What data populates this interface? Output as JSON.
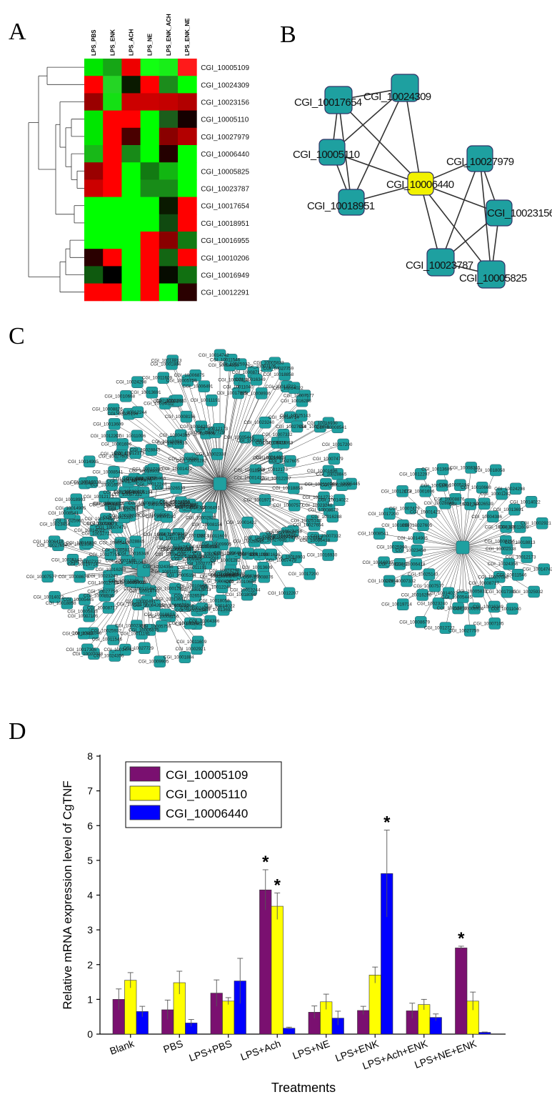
{
  "panels": {
    "a": "A",
    "b": "B",
    "c": "C",
    "d": "D"
  },
  "heatmap": {
    "columns": [
      "LPS_PBS",
      "LPS_ENK",
      "LPS_ACH",
      "LPS_NE",
      "LPS_ENK_ACH",
      "LPS_ENK_NE"
    ],
    "rows": [
      "CGI_10005109",
      "CGI_10024309",
      "CGI_10023156",
      "CGI_10005110",
      "CGI_10027979",
      "CGI_10006440",
      "CGI_10005825",
      "CGI_10023787",
      "CGI_10017654",
      "CGI_10018951",
      "CGI_10016955",
      "CGI_10010206",
      "CGI_10016949",
      "CGI_10012291"
    ],
    "colors": [
      [
        "#00e600",
        "#16a616",
        "#ee0000",
        "#12ff12",
        "#18ee18",
        "#ff1a1a"
      ],
      [
        "#ff0000",
        "#25d525",
        "#0a1a00",
        "#ff0000",
        "#1c8c1c",
        "#00ff00"
      ],
      [
        "#9a0000",
        "#14e014",
        "#cc0000",
        "#cc0000",
        "#c40000",
        "#b20000"
      ],
      [
        "#00e600",
        "#ff0000",
        "#ff0000",
        "#00ff00",
        "#1b5e1b",
        "#150000"
      ],
      [
        "#00e600",
        "#ff0000",
        "#4a0000",
        "#00ff00",
        "#8a0000",
        "#b30000"
      ],
      [
        "#18b818",
        "#ff0000",
        "#188a18",
        "#00ff00",
        "#240000",
        "#00ff00"
      ],
      [
        "#9a0000",
        "#ff0000",
        "#00ff00",
        "#127a12",
        "#12b612",
        "#00ff00"
      ],
      [
        "#cc0000",
        "#ff0000",
        "#00ff00",
        "#188c18",
        "#188c18",
        "#00ff00"
      ],
      [
        "#00ff00",
        "#00ff00",
        "#00ff00",
        "#00ff00",
        "#0a1a00",
        "#ff0000"
      ],
      [
        "#00ff00",
        "#00ff00",
        "#00ff00",
        "#00ff00",
        "#104a10",
        "#ff0000"
      ],
      [
        "#00ff00",
        "#00ff00",
        "#00ff00",
        "#ff0000",
        "#8a0000",
        "#127a12"
      ],
      [
        "#2a0000",
        "#ff0000",
        "#00ff00",
        "#ff0000",
        "#136613",
        "#ff0000"
      ],
      [
        "#0f5a0f",
        "#000000",
        "#00ff00",
        "#ff0000",
        "#060c00",
        "#117011"
      ],
      [
        "#ff0000",
        "#ff0000",
        "#00ff00",
        "#ff0000",
        "#00ff00",
        "#2a0000"
      ]
    ]
  },
  "network_b": {
    "nodes": [
      {
        "label": "CGI_10017654",
        "color": "#1ea0a0"
      },
      {
        "label": "CGI_10024309",
        "color": "#1ea0a0"
      },
      {
        "label": "CGI_10005110",
        "color": "#1ea0a0"
      },
      {
        "label": "CGI_10018951",
        "color": "#1ea0a0"
      },
      {
        "label": "CGI_10006440",
        "color": "#f2f200"
      },
      {
        "label": "CGI_10027979",
        "color": "#1ea0a0"
      },
      {
        "label": "CGI_10023156",
        "color": "#1ea0a0"
      },
      {
        "label": "CGI_10023787",
        "color": "#1ea0a0"
      },
      {
        "label": "CGI_10005825",
        "color": "#1ea0a0"
      }
    ],
    "edges": [
      [
        0,
        1
      ],
      [
        0,
        2
      ],
      [
        0,
        3
      ],
      [
        0,
        4
      ],
      [
        1,
        2
      ],
      [
        1,
        3
      ],
      [
        1,
        4
      ],
      [
        2,
        3
      ],
      [
        2,
        4
      ],
      [
        3,
        4
      ],
      [
        4,
        5
      ],
      [
        4,
        6
      ],
      [
        4,
        7
      ],
      [
        4,
        8
      ],
      [
        5,
        6
      ],
      [
        5,
        7
      ],
      [
        5,
        8
      ],
      [
        6,
        7
      ],
      [
        6,
        8
      ],
      [
        7,
        8
      ]
    ]
  },
  "network_c": {
    "node_color": "#1ea0a0",
    "labels": [
      "CGI_10005445",
      "CGI_10018858",
      "CGI_10012722",
      "CGI_10014022",
      "CGI_10023240",
      "CGI_10008679",
      "CGI_10007577",
      "CGI_10016288",
      "CGI_10019714",
      "CGI_10025143",
      "CGI_10007332",
      "CGI_10027654",
      "CGI_10006418",
      "CGI_10023363",
      "CGI_10016930",
      "CGI_10023458",
      "CGI_10025960",
      "CGI_10008541",
      "CGI_10014905",
      "CGI_10018903",
      "CGI_10017200",
      "CGI_10027605",
      "CGI_10007479",
      "CGI_10012173",
      "CGI_10001422",
      "CGI_10001696",
      "CGI_10012207",
      "CGI_10028845",
      "CGI_10011096",
      "CGI_10013609",
      "CGI_10008876",
      "CGI_10005194",
      "CGI_10008365",
      "CGI_10012244",
      "CGI_10010668",
      "CGI_10018058",
      "CGI_10026539",
      "CGI_10001282",
      "CGI_10024298",
      "CGI_10004386",
      "CGI_10013691",
      "CGI_10014022",
      "CGI_10008340",
      "CGI_10011609",
      "CGI_10002921",
      "CGI_10008156",
      "CGI_10018813",
      "CGI_10001884",
      "CGI_10004205",
      "CGI_10005759",
      "CGI_10009905",
      "CGI_10006875",
      "CGI_10006491",
      "CGI_10027729",
      "CGI_10011191",
      "CGI_10002338",
      "CGI_10012173",
      "CGI_10014742",
      "CGI_10024356",
      "CGI_10011546",
      "CGI_10025932",
      "CGI_10007038",
      "CGI_10017305",
      "CGI_10011040",
      "CGI_10008717",
      "CGI_10016349",
      "CGI_10007105",
      "CGI_10005833",
      "CGI_10008936",
      "CGI_10027759"
    ]
  },
  "chart_data": {
    "type": "bar",
    "ylabel": "Relative mRNA expression level of CgTNF",
    "xlabel": "Treatments",
    "ylim": [
      0,
      8
    ],
    "yticks": [
      "0",
      "1",
      "2",
      "3",
      "4",
      "5",
      "6",
      "7",
      "8"
    ],
    "categories": [
      "Blank",
      "PBS",
      "LPS+PBS",
      "LPS+Ach",
      "LPS+NE",
      "LPS+ENK",
      "LPS+Ach+ENK",
      "LPS+NE+ENK"
    ],
    "series": [
      {
        "name": "CGI_10005109",
        "color": "#7a1070",
        "values": [
          1.0,
          0.7,
          1.18,
          4.15,
          0.63,
          0.68,
          0.67,
          2.48
        ],
        "errors": [
          0.3,
          0.28,
          0.38,
          0.58,
          0.18,
          0.12,
          0.22,
          0.05
        ]
      },
      {
        "name": "CGI_10005110",
        "color": "#ffff00",
        "values": [
          1.55,
          1.48,
          0.95,
          3.68,
          0.93,
          1.7,
          0.85,
          0.95
        ],
        "errors": [
          0.22,
          0.33,
          0.1,
          0.38,
          0.22,
          0.23,
          0.15,
          0.26
        ]
      },
      {
        "name": "CGI_10006440",
        "color": "#0000ff",
        "values": [
          0.65,
          0.32,
          1.53,
          0.17,
          0.46,
          4.62,
          0.48,
          0.05
        ],
        "errors": [
          0.15,
          0.1,
          0.65,
          0.03,
          0.2,
          1.25,
          0.1,
          0.01
        ]
      }
    ],
    "significance": [
      [
        3,
        0
      ],
      [
        3,
        1
      ],
      [
        5,
        2
      ],
      [
        7,
        0
      ]
    ],
    "significance_mark": "*",
    "legend_position": "top-left"
  }
}
